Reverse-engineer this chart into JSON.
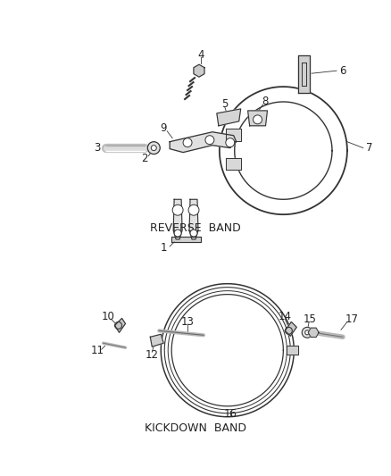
{
  "background_color": "#ffffff",
  "section1_label": "REVERSE  BAND",
  "section2_label": "KICKDOWN  BAND",
  "line_color": "#333333",
  "text_color": "#222222",
  "label_fontsize": 8.5,
  "section_label_fontsize": 9.0
}
